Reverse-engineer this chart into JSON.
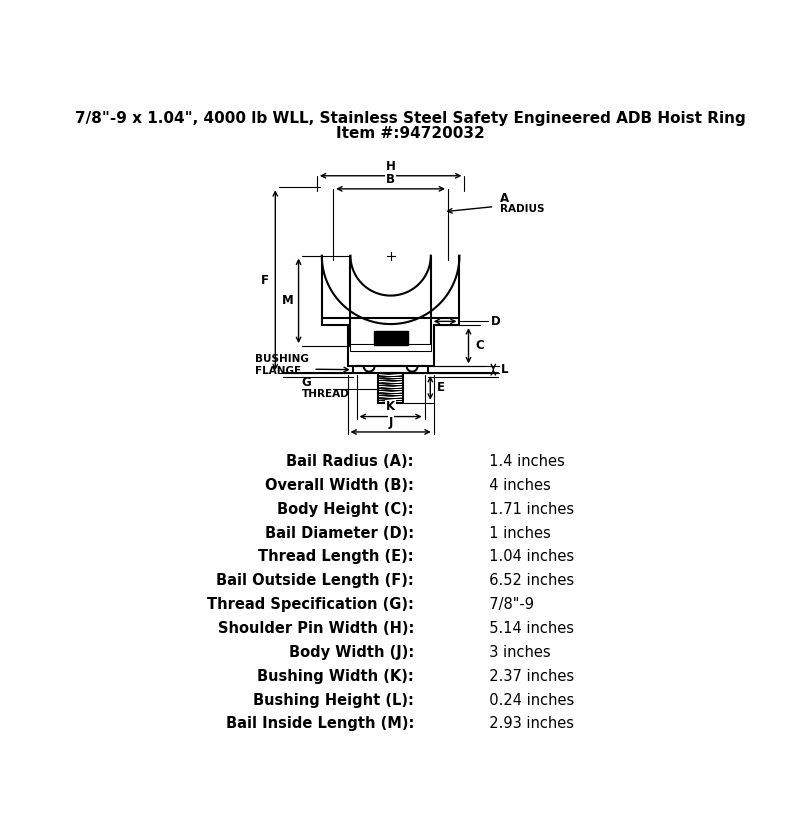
{
  "title_line1": "7/8\"-9 x 1.04\", 4000 lb WLL, Stainless Steel Safety Engineered ADB Hoist Ring",
  "title_line2": "Item #:94720032",
  "specs": [
    [
      "Bail Radius (A):",
      "1.4 inches"
    ],
    [
      "Overall Width (B):",
      "4 inches"
    ],
    [
      "Body Height (C):",
      "1.71 inches"
    ],
    [
      "Bail Diameter (D):",
      "1 inches"
    ],
    [
      "Thread Length (E):",
      "1.04 inches"
    ],
    [
      "Bail Outside Length (F):",
      "6.52 inches"
    ],
    [
      "Thread Specification (G):",
      "7/8\"-9"
    ],
    [
      "Shoulder Pin Width (H):",
      "5.14 inches"
    ],
    [
      "Body Width (J):",
      "3 inches"
    ],
    [
      "Bushing Width (K):",
      "2.37 inches"
    ],
    [
      "Bushing Height (L):",
      "0.24 inches"
    ],
    [
      "Bail Inside Length (M):",
      "2.93 inches"
    ]
  ],
  "bg_color": "#ffffff",
  "line_color": "#000000"
}
